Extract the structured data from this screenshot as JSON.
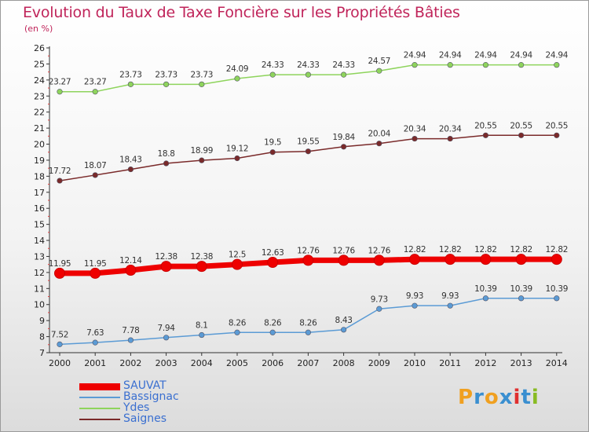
{
  "title": "Evolution du Taux de Taxe Foncière sur les Propriétés Bâties",
  "unit_label": "(en %)",
  "logo": {
    "text": "Proxiti",
    "letters": [
      "P",
      "r",
      "o",
      "x",
      "i",
      "t",
      "i"
    ],
    "colors": [
      "#f0a020",
      "#3a8fd0",
      "#f0a020",
      "#3a8fd0",
      "#e03030",
      "#3a8fd0",
      "#88bb22"
    ]
  },
  "chart_data": {
    "type": "line",
    "x": [
      "2000",
      "2001",
      "2002",
      "2003",
      "2004",
      "2005",
      "2006",
      "2007",
      "2008",
      "2009",
      "2010",
      "2011",
      "2012",
      "2013",
      "2014"
    ],
    "ylim": [
      7,
      26
    ],
    "yticks": [
      "7",
      "8",
      "9",
      "10",
      "11",
      "12",
      "13",
      "14",
      "15",
      "16",
      "17",
      "18",
      "19",
      "20",
      "21",
      "22",
      "23",
      "24",
      "25",
      "26"
    ],
    "grid": false,
    "legend_position": "bottom-left",
    "series": [
      {
        "name": "SAUVAT",
        "color": "#ee0000",
        "values": [
          11.95,
          11.95,
          12.14,
          12.38,
          12.38,
          12.5,
          12.63,
          12.76,
          12.76,
          12.76,
          12.82,
          12.82,
          12.82,
          12.82,
          12.82
        ],
        "labels": [
          "11.95",
          "11.95",
          "12.14",
          "12.38",
          "12.38",
          "12.5",
          "12.63",
          "12.76",
          "12.76",
          "12.76",
          "12.82",
          "12.82",
          "12.82",
          "12.82",
          "12.82"
        ]
      },
      {
        "name": "Bassignac",
        "color": "#5b9bd5",
        "values": [
          7.52,
          7.63,
          7.78,
          7.94,
          8.1,
          8.26,
          8.26,
          8.26,
          8.43,
          9.73,
          9.93,
          9.93,
          10.39,
          10.39,
          10.39
        ],
        "labels": [
          "7.52",
          "7.63",
          "7.78",
          "7.94",
          "8.1",
          "8.26",
          "8.26",
          "8.26",
          "8.43",
          "9.73",
          "9.93",
          "9.93",
          "10.39",
          "10.39",
          "10.39"
        ]
      },
      {
        "name": "Ydes",
        "color": "#8ed45c",
        "values": [
          23.27,
          23.27,
          23.73,
          23.73,
          23.73,
          24.09,
          24.33,
          24.33,
          24.33,
          24.57,
          24.94,
          24.94,
          24.94,
          24.94,
          24.94
        ],
        "labels": [
          "23.27",
          "23.27",
          "23.73",
          "23.73",
          "23.73",
          "24.09",
          "24.33",
          "24.33",
          "24.33",
          "24.57",
          "24.94",
          "24.94",
          "24.94",
          "24.94",
          "24.94"
        ]
      },
      {
        "name": "Saignes",
        "color": "#7a2a2a",
        "values": [
          17.72,
          18.07,
          18.43,
          18.8,
          18.99,
          19.12,
          19.5,
          19.55,
          19.84,
          20.04,
          20.34,
          20.34,
          20.55,
          20.55,
          20.55
        ],
        "labels": [
          "17.72",
          "18.07",
          "18.43",
          "18.8",
          "18.99",
          "19.12",
          "19.5",
          "19.55",
          "19.84",
          "20.04",
          "20.34",
          "20.34",
          "20.55",
          "20.55",
          "20.55"
        ]
      }
    ]
  }
}
